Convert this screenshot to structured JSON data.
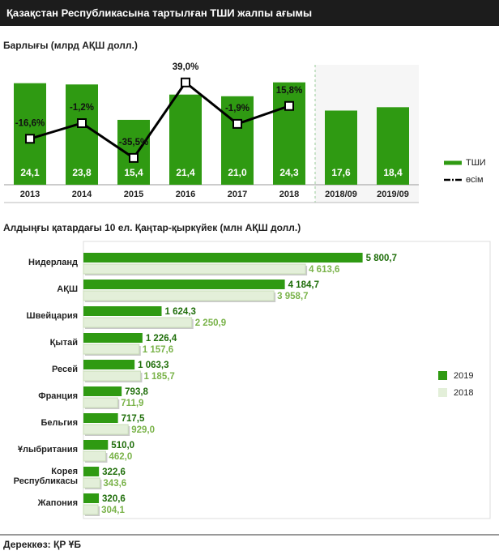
{
  "header": {
    "title": "Қазақстан Республикасына тартылған ТШИ жалпы ағымы"
  },
  "chart_data": [
    {
      "type": "bar-line",
      "title": "Барлығы (млрд АҚШ долл.)",
      "categories": [
        "2013",
        "2014",
        "2015",
        "2016",
        "2017",
        "2018",
        "2018/09",
        "2019/09"
      ],
      "series": [
        {
          "name": "ТШИ",
          "type": "bar",
          "color": "#2f9a12",
          "values": [
            24.1,
            23.8,
            15.4,
            21.4,
            21.0,
            24.3,
            17.6,
            18.4
          ],
          "value_labels": [
            "24,1",
            "23,8",
            "15,4",
            "21,4",
            "21,0",
            "24,3",
            "17,6",
            "18,4"
          ]
        },
        {
          "name": "өсім",
          "type": "line",
          "color": "#000000",
          "axis": "y2",
          "values": [
            -16.6,
            -1.2,
            -35.5,
            39.0,
            -1.9,
            15.8,
            null,
            null
          ],
          "value_labels": [
            "-16,6%",
            "-1,2%",
            "-35,5%",
            "39,0%",
            "-1,9%",
            "15,8%",
            null,
            null
          ]
        }
      ],
      "ylim": [
        0,
        25
      ],
      "y2lim": [
        -62,
        42
      ],
      "legend": "right"
    },
    {
      "type": "hbar",
      "title": "Алдыңғы қатардағы 10 ел. Қаңтар-қыркүйек (млн АҚШ долл.)",
      "categories": [
        "Нидерланд",
        "АҚШ",
        "Швейцария",
        "Қытай",
        "Ресей",
        "Франция",
        "Бельгия",
        "Ұлыбритания",
        "Корея Республикасы",
        "Жапония"
      ],
      "series": [
        {
          "name": "2019",
          "color": "#2f9a12",
          "values": [
            5800.7,
            4184.7,
            1624.3,
            1226.4,
            1063.3,
            793.8,
            717.5,
            510.0,
            322.6,
            320.6
          ],
          "value_labels": [
            "5 800,7",
            "4 184,7",
            "1 624,3",
            "1 226,4",
            "1 063,3",
            "793,8",
            "717,5",
            "510,0",
            "322,6",
            "320,6"
          ]
        },
        {
          "name": "2018",
          "color": "#e3efd9",
          "values": [
            4613.6,
            3958.7,
            2250.9,
            1157.6,
            1185.7,
            711.9,
            929.0,
            462.0,
            343.6,
            304.1
          ],
          "value_labels": [
            "4 613,6",
            "3 958,7",
            "2 250,9",
            "1 157,6",
            "1 185,7",
            "711,9",
            "929,0",
            "462,0",
            "343,6",
            "304,1"
          ]
        }
      ],
      "xlim": [
        0,
        8450
      ],
      "legend": "right"
    }
  ],
  "footer": {
    "source": "Дереккөз: ҚР ҰБ"
  }
}
